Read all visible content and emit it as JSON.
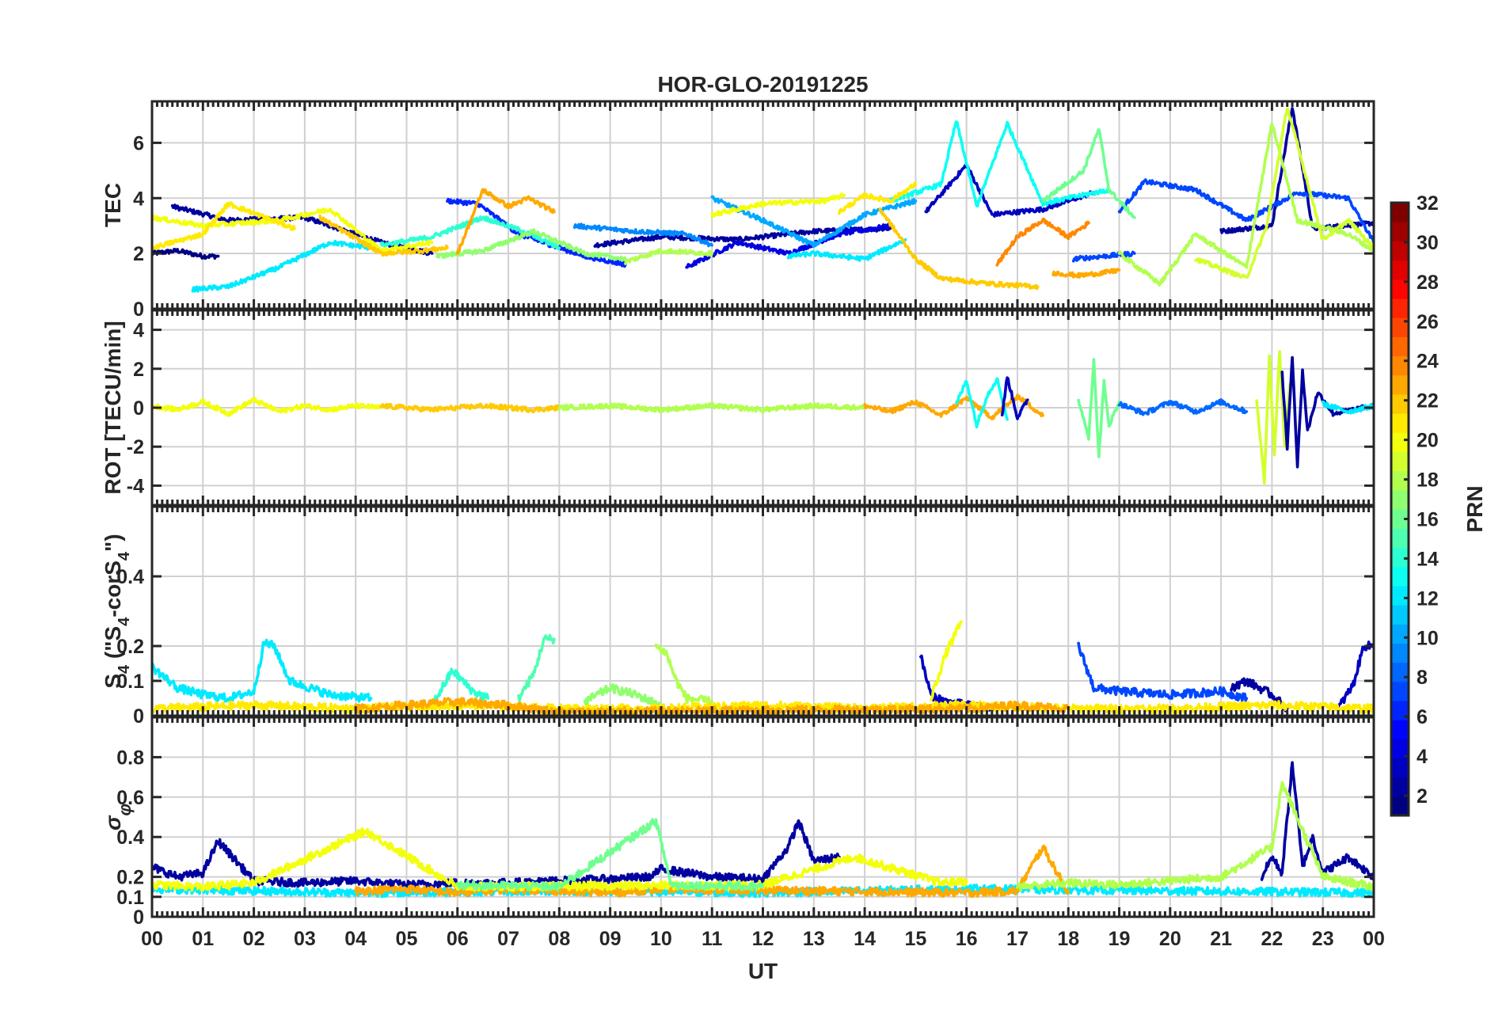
{
  "chart_data": [
    {
      "panel": "tec",
      "type": "line",
      "title": "HOR-GLO-20191225",
      "ylabel": "TEC",
      "ylim": [
        0,
        7.5
      ],
      "yticks": [
        0,
        2,
        4,
        6
      ],
      "xlim": [
        0,
        24
      ],
      "series": [
        {
          "prn": 1,
          "x": [
            0,
            0.5,
            1,
            1.3
          ],
          "y": [
            2.0,
            2.1,
            1.9,
            1.9
          ]
        },
        {
          "prn": 2,
          "x": [
            0.4,
            1.5,
            3,
            4.5,
            5.5
          ],
          "y": [
            3.7,
            3.2,
            3.3,
            2.4,
            2.0
          ]
        },
        {
          "prn": 2,
          "x": [
            8.7,
            10,
            11.5,
            13,
            14.5
          ],
          "y": [
            2.3,
            2.6,
            2.5,
            2.8,
            2.9
          ]
        },
        {
          "prn": 2,
          "x": [
            21,
            22,
            22.4,
            22.8,
            24
          ],
          "y": [
            2.8,
            3.0,
            7.3,
            2.9,
            3.1
          ]
        },
        {
          "prn": 3,
          "x": [
            15.2,
            16,
            16.5,
            17.5,
            18.5
          ],
          "y": [
            3.5,
            5.2,
            3.4,
            3.6,
            4.2
          ]
        },
        {
          "prn": 4,
          "x": [
            10.5,
            11.5,
            12.5,
            13.5,
            14.5
          ],
          "y": [
            1.5,
            2.4,
            2.0,
            2.7,
            3.0
          ]
        },
        {
          "prn": 6,
          "x": [
            5.8,
            6.4,
            7.2,
            8.5,
            9.3
          ],
          "y": [
            3.9,
            3.8,
            2.7,
            1.9,
            1.6
          ]
        },
        {
          "prn": 7,
          "x": [
            19,
            19.5,
            20.5,
            21.5,
            22.5,
            23.5,
            24
          ],
          "y": [
            3.5,
            4.6,
            4.3,
            3.2,
            4.2,
            4.0,
            2.4
          ]
        },
        {
          "prn": 7,
          "x": [
            18.1,
            19.3
          ],
          "y": [
            1.8,
            2.0
          ]
        },
        {
          "prn": 9,
          "x": [
            8.3,
            9.5,
            10.5,
            11
          ],
          "y": [
            3.0,
            2.8,
            2.7,
            2.3
          ]
        },
        {
          "prn": 10,
          "x": [
            11,
            12,
            13,
            14,
            15
          ],
          "y": [
            4.0,
            3.2,
            2.3,
            3.4,
            3.9
          ]
        },
        {
          "prn": 12,
          "x": [
            0.8,
            1.5,
            2.5,
            3.5,
            4.3
          ],
          "y": [
            0.7,
            0.8,
            1.5,
            2.4,
            2.2
          ]
        },
        {
          "prn": 12,
          "x": [
            12.5,
            13,
            14,
            14.8
          ],
          "y": [
            1.9,
            2.0,
            1.8,
            2.5
          ]
        },
        {
          "prn": 13,
          "x": [
            14.5,
            15.5,
            15.8,
            16.2,
            16.8,
            17.5,
            18,
            18.8
          ],
          "y": [
            3.9,
            4.5,
            6.8,
            3.7,
            6.7,
            3.8,
            4.0,
            4.3
          ]
        },
        {
          "prn": 14,
          "x": [
            4.5,
            5.5,
            6.5,
            7.3,
            8
          ],
          "y": [
            2.3,
            2.6,
            3.3,
            2.8,
            2.2
          ]
        },
        {
          "prn": 16,
          "x": [
            17.5,
            18.3,
            18.6,
            18.8,
            19.3
          ],
          "y": [
            3.9,
            5.0,
            6.5,
            4.3,
            3.3
          ]
        },
        {
          "prn": 17,
          "x": [
            5.6,
            6.5,
            7.5,
            8.5,
            9.3
          ],
          "y": [
            1.9,
            2.1,
            2.8,
            2.0,
            1.8
          ]
        },
        {
          "prn": 18,
          "x": [
            19,
            19.8,
            20.5,
            21.5,
            22,
            22.5,
            23.5,
            24
          ],
          "y": [
            2.0,
            0.9,
            2.7,
            1.5,
            6.7,
            3.2,
            2.7,
            2.1
          ]
        },
        {
          "prn": 18,
          "x": [
            9.3,
            10,
            11
          ],
          "y": [
            1.7,
            2.1,
            2.0
          ]
        },
        {
          "prn": 19,
          "x": [
            20.5,
            21.5,
            21.9,
            22.3,
            23,
            23.5,
            24
          ],
          "y": [
            1.8,
            1.1,
            3.0,
            7.3,
            2.5,
            3.2,
            2.2
          ]
        },
        {
          "prn": 20,
          "x": [
            0,
            1,
            2.5,
            3.5,
            4.5,
            5.5
          ],
          "y": [
            3.3,
            3.0,
            3.2,
            3.6,
            2.1,
            2.4
          ]
        },
        {
          "prn": 20,
          "x": [
            11,
            12,
            13.2,
            13.6
          ],
          "y": [
            3.4,
            3.8,
            3.9,
            4.1
          ]
        },
        {
          "prn": 21,
          "x": [
            0,
            1,
            1.5,
            2.8
          ],
          "y": [
            2.2,
            2.7,
            3.8,
            2.9
          ]
        },
        {
          "prn": 21,
          "x": [
            13.5,
            14,
            14.5,
            15
          ],
          "y": [
            3.5,
            4.1,
            3.9,
            4.5
          ]
        },
        {
          "prn": 22,
          "x": [
            3.3,
            4.5,
            5.3,
            5.8
          ],
          "y": [
            3.3,
            2.0,
            2.1,
            2.2
          ]
        },
        {
          "prn": 22,
          "x": [
            14.3,
            15,
            15.5,
            16.5,
            17.4
          ],
          "y": [
            3.6,
            1.8,
            1.1,
            0.9,
            0.8
          ]
        },
        {
          "prn": 23,
          "x": [
            6,
            6.5,
            7,
            7.4,
            7.9
          ],
          "y": [
            2.0,
            4.3,
            3.7,
            4.0,
            3.5
          ]
        },
        {
          "prn": 23,
          "x": [
            17.7,
            18.2,
            18.7,
            19
          ],
          "y": [
            1.3,
            1.2,
            1.3,
            1.4
          ]
        },
        {
          "prn": 24,
          "x": [
            16.6,
            17,
            17.5,
            18,
            18.4
          ],
          "y": [
            1.6,
            2.6,
            3.2,
            2.6,
            3.1
          ]
        }
      ]
    },
    {
      "panel": "rot",
      "type": "line",
      "ylabel": "ROT [TECU/min]",
      "ylim": [
        -5,
        5
      ],
      "yticks": [
        -4,
        -2,
        0,
        2,
        4
      ],
      "xlim": [
        0,
        24
      ],
      "series": [
        {
          "prn": 20,
          "x": [
            0,
            0.5,
            1,
            1.5,
            2,
            2.5,
            3,
            3.5,
            4,
            4.5
          ],
          "y": [
            0.1,
            -0.1,
            0.3,
            -0.3,
            0.4,
            -0.2,
            0.1,
            -0.1,
            0.1,
            0
          ]
        },
        {
          "prn": 22,
          "x": [
            4.5,
            5.5,
            6.5,
            7.5,
            8
          ],
          "y": [
            0.1,
            -0.1,
            0.1,
            -0.1,
            0
          ]
        },
        {
          "prn": 18,
          "x": [
            8,
            9,
            10,
            11,
            12,
            13,
            14
          ],
          "y": [
            0,
            0.1,
            -0.1,
            0.1,
            -0.1,
            0.1,
            0
          ]
        },
        {
          "prn": 23,
          "x": [
            14,
            14.5,
            15,
            15.5,
            16,
            16.5,
            17,
            17.5
          ],
          "y": [
            0.1,
            -0.2,
            0.3,
            -0.4,
            0.5,
            -0.5,
            0.6,
            -0.4
          ]
        },
        {
          "prn": 13,
          "x": [
            15.8,
            16,
            16.2,
            16.4,
            16.6,
            16.8
          ],
          "y": [
            0.2,
            1.4,
            -0.9,
            0.6,
            1.5,
            -0.6
          ]
        },
        {
          "prn": 3,
          "x": [
            16.7,
            16.8,
            17,
            17.2
          ],
          "y": [
            -0.4,
            1.6,
            -0.5,
            0.4
          ]
        },
        {
          "prn": 16,
          "x": [
            18.2,
            18.4,
            18.5,
            18.6,
            18.7,
            18.8,
            19
          ],
          "y": [
            0.4,
            -1.5,
            2.4,
            -2.5,
            1.3,
            -0.9,
            0.3
          ]
        },
        {
          "prn": 8,
          "x": [
            19,
            19.5,
            20,
            20.5,
            21,
            21.5
          ],
          "y": [
            0.2,
            -0.3,
            0.3,
            -0.2,
            0.3,
            -0.2
          ]
        },
        {
          "prn": 19,
          "x": [
            21.7,
            21.85,
            21.95,
            22.05,
            22.15,
            22.25,
            22.35
          ],
          "y": [
            0.4,
            -3.8,
            2.6,
            -2.4,
            3.0,
            -2.0,
            1.2
          ]
        },
        {
          "prn": 2,
          "x": [
            22.2,
            22.3,
            22.4,
            22.5,
            22.6,
            22.7,
            22.9,
            23.2,
            24
          ],
          "y": [
            1.8,
            -2.1,
            2.7,
            -3.0,
            1.9,
            -1.2,
            0.8,
            -0.3,
            0.1
          ]
        },
        {
          "prn": 12,
          "x": [
            23,
            23.5,
            24
          ],
          "y": [
            0.2,
            -0.2,
            0.1
          ]
        }
      ]
    },
    {
      "panel": "s4",
      "type": "line",
      "ylabel": "S4 (\"S4-corS4\")",
      "ylim": [
        0,
        0.6
      ],
      "yticks": [
        0,
        0.1,
        0.2,
        0.4
      ],
      "xlim": [
        0,
        24
      ],
      "series": [
        {
          "prn": 12,
          "x": [
            0,
            0.5,
            1,
            1.5,
            2,
            2.2,
            2.4,
            2.7,
            3.5,
            4.3
          ],
          "y": [
            0.14,
            0.08,
            0.06,
            0.05,
            0.07,
            0.21,
            0.2,
            0.1,
            0.06,
            0.05
          ]
        },
        {
          "prn": 14,
          "x": [
            5.5,
            5.9,
            6.3,
            6.6
          ],
          "y": [
            0.03,
            0.13,
            0.07,
            0.05
          ]
        },
        {
          "prn": 15,
          "x": [
            7.2,
            7.5,
            7.7,
            7.9
          ],
          "y": [
            0.05,
            0.12,
            0.22,
            0.22
          ]
        },
        {
          "prn": 18,
          "x": [
            9.9,
            10.1,
            10.3,
            10.5,
            11
          ],
          "y": [
            0.2,
            0.18,
            0.1,
            0.05,
            0.04
          ]
        },
        {
          "prn": 17,
          "x": [
            8.5,
            9,
            9.5,
            10
          ],
          "y": [
            0.04,
            0.08,
            0.06,
            0.03
          ]
        },
        {
          "prn": 3,
          "x": [
            15.1,
            15.3,
            15.6,
            16,
            16.5
          ],
          "y": [
            0.17,
            0.06,
            0.04,
            0.03,
            0.02
          ]
        },
        {
          "prn": 20,
          "x": [
            15.3,
            15.6,
            15.9
          ],
          "y": [
            0.05,
            0.18,
            0.27
          ]
        },
        {
          "prn": 7,
          "x": [
            18.2,
            18.5,
            19,
            20,
            21,
            21.5
          ],
          "y": [
            0.2,
            0.08,
            0.07,
            0.06,
            0.07,
            0.05
          ]
        },
        {
          "prn": 2,
          "x": [
            21.2,
            21.5,
            22,
            22.3
          ],
          "y": [
            0.08,
            0.1,
            0.06,
            0.02
          ]
        },
        {
          "prn": 3,
          "x": [
            23.3,
            23.6,
            23.8,
            24
          ],
          "y": [
            0.02,
            0.09,
            0.2,
            0.2
          ]
        },
        {
          "prn": 21,
          "x": [
            0,
            2,
            4,
            6,
            8,
            10,
            12,
            14,
            16,
            18,
            20,
            22,
            24
          ],
          "y": [
            0.02,
            0.03,
            0.02,
            0.03,
            0.02,
            0.02,
            0.03,
            0.02,
            0.03,
            0.02,
            0.02,
            0.03,
            0.02
          ]
        },
        {
          "prn": 23,
          "x": [
            4,
            6,
            7,
            8,
            16,
            17,
            18
          ],
          "y": [
            0.02,
            0.04,
            0.03,
            0.01,
            0.02,
            0.03,
            0.02
          ]
        }
      ]
    },
    {
      "panel": "sigma",
      "type": "line",
      "ylabel": "σφ",
      "ylim": [
        0,
        1.0
      ],
      "yticks": [
        0,
        0.1,
        0.2,
        0.4,
        0.6,
        0.8
      ],
      "xlim": [
        0,
        24
      ],
      "series": [
        {
          "prn": 2,
          "x": [
            0,
            0.5,
            1,
            1.3,
            2,
            3,
            4,
            5,
            6,
            7,
            8,
            9,
            9.8,
            10,
            11,
            12,
            12.5,
            12.7,
            13,
            13.5
          ],
          "y": [
            0.25,
            0.2,
            0.22,
            0.38,
            0.18,
            0.17,
            0.18,
            0.16,
            0.17,
            0.17,
            0.18,
            0.19,
            0.2,
            0.24,
            0.2,
            0.19,
            0.35,
            0.48,
            0.28,
            0.3
          ]
        },
        {
          "prn": 2,
          "x": [
            21.8,
            22,
            22.2,
            22.4,
            22.6,
            22.8,
            23,
            23.5,
            24
          ],
          "y": [
            0.2,
            0.3,
            0.22,
            0.77,
            0.25,
            0.4,
            0.22,
            0.3,
            0.2
          ]
        },
        {
          "prn": 12,
          "x": [
            0,
            4,
            8,
            12,
            16,
            20,
            24
          ],
          "y": [
            0.14,
            0.12,
            0.13,
            0.12,
            0.14,
            0.13,
            0.12
          ]
        },
        {
          "prn": 23,
          "x": [
            4,
            5,
            6,
            7,
            8,
            9,
            10,
            16,
            17,
            17.5,
            18
          ],
          "y": [
            0.13,
            0.14,
            0.12,
            0.14,
            0.13,
            0.12,
            0.14,
            0.12,
            0.13,
            0.35,
            0.12
          ]
        },
        {
          "prn": 20,
          "x": [
            0,
            1,
            2,
            4.2,
            6,
            12,
            13.8,
            15.5,
            16
          ],
          "y": [
            0.16,
            0.15,
            0.17,
            0.43,
            0.15,
            0.16,
            0.3,
            0.17,
            0.18
          ]
        },
        {
          "prn": 18,
          "x": [
            17,
            18,
            19,
            20,
            21,
            22,
            22.2,
            23,
            24
          ],
          "y": [
            0.15,
            0.17,
            0.16,
            0.18,
            0.2,
            0.35,
            0.67,
            0.2,
            0.15
          ]
        },
        {
          "prn": 16,
          "x": [
            6,
            8,
            9.9,
            10.2,
            12
          ],
          "y": [
            0.16,
            0.15,
            0.48,
            0.16,
            0.15
          ]
        }
      ]
    }
  ],
  "x_axis": {
    "label": "UT",
    "tick_labels": [
      "00",
      "01",
      "02",
      "03",
      "04",
      "05",
      "06",
      "07",
      "08",
      "09",
      "10",
      "11",
      "12",
      "13",
      "14",
      "15",
      "16",
      "17",
      "18",
      "19",
      "20",
      "21",
      "22",
      "23",
      "00"
    ]
  },
  "colorbar": {
    "label": "PRN",
    "range": [
      1,
      32
    ],
    "tick_labels": [
      "2",
      "4",
      "6",
      "8",
      "10",
      "12",
      "14",
      "16",
      "18",
      "20",
      "22",
      "24",
      "26",
      "28",
      "30",
      "32"
    ],
    "colormap": "jet"
  }
}
